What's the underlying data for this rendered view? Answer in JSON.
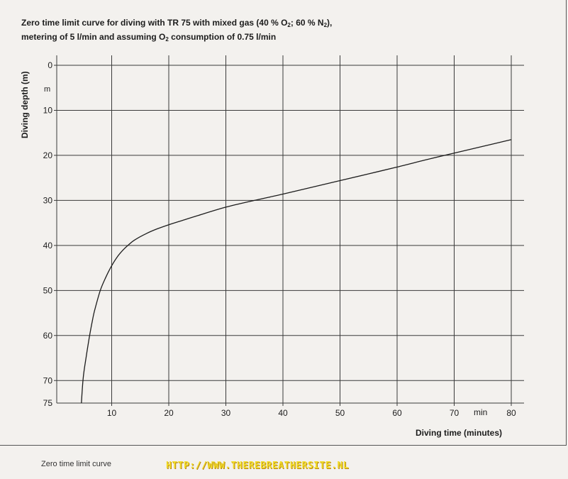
{
  "chart_data": {
    "type": "line",
    "title_line1_a": "Zero time limit curve for diving with TR 75 with mixed gas (40 % O",
    "title_line1_b": "; 60 % N",
    "title_line1_c": "),",
    "title_line2_a": "metering of 5 l/min and assuming O",
    "title_line2_b": " consumption of 0.75 l/min",
    "sub2": "2",
    "ylabel": "Diving depth (m)",
    "ylabel_unit": "m",
    "xlabel": "Diving time (minutes)",
    "xlabel_unit": "min",
    "xlim": [
      0,
      80
    ],
    "ylim": [
      0,
      75
    ],
    "x_ticks": [
      10,
      20,
      30,
      40,
      50,
      60,
      70,
      80
    ],
    "y_ticks": [
      0,
      10,
      20,
      30,
      40,
      50,
      60,
      70,
      75
    ],
    "x_tick_labels": [
      "10",
      "20",
      "30",
      "40",
      "50",
      "60",
      "70",
      "80"
    ],
    "y_tick_labels": [
      "0",
      "10",
      "20",
      "30",
      "40",
      "50",
      "60",
      "70",
      "75"
    ],
    "y_inverted": true,
    "grid": true,
    "series": [
      {
        "x": [
          4.7,
          5.0,
          5.5,
          6.0,
          6.5,
          7.0,
          8.0,
          9.0,
          10.0,
          11.0,
          12.0,
          13.0,
          14.0,
          16.0,
          18.0,
          20.0,
          22.0,
          25.0,
          30.0,
          35.0,
          40.0,
          45.0,
          50.0,
          55.0,
          60.0,
          65.0,
          70.0,
          75.0,
          80.0
        ],
        "y": [
          75.0,
          69.5,
          65.0,
          61.0,
          57.5,
          54.5,
          50.0,
          47.0,
          44.5,
          42.5,
          41.0,
          39.8,
          38.8,
          37.4,
          36.3,
          35.4,
          34.6,
          33.4,
          31.5,
          30.0,
          28.6,
          27.1,
          25.6,
          24.1,
          22.6,
          21.0,
          19.5,
          18.0,
          16.5
        ]
      }
    ]
  },
  "caption": "Zero time limit curve",
  "watermark": "HTTP://WWW.THEREBREATHERSITE.NL"
}
